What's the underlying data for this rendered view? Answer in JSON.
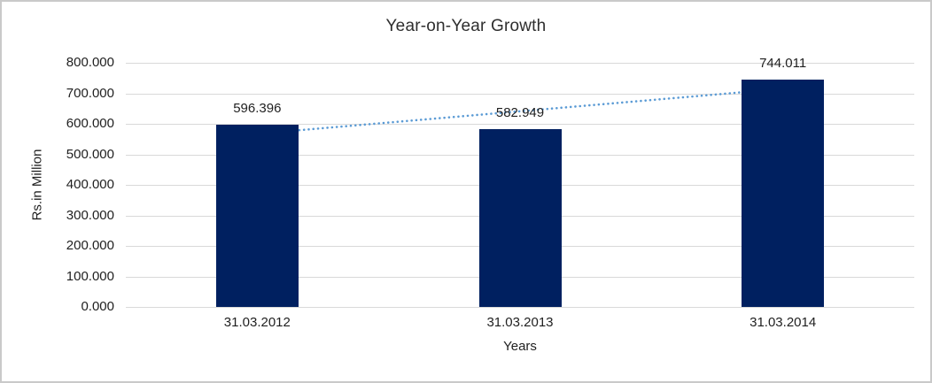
{
  "window": {
    "background_color": "#ffffff",
    "border_color": "#c9c9c9"
  },
  "chart_data": {
    "type": "bar",
    "title": "Year-on-Year Growth",
    "categories": [
      "31.03.2012",
      "31.03.2013",
      "31.03.2014"
    ],
    "values": [
      596.396,
      582.949,
      744.011
    ],
    "value_labels": [
      "596.396",
      "582.949",
      "744.011"
    ],
    "xlabel": "Years",
    "ylabel": "Rs.in Million",
    "ylim": [
      0,
      800
    ],
    "ytick_step": 100,
    "ytick_labels": [
      "800.000",
      "700.000",
      "600.000",
      "500.000",
      "400.000",
      "300.000",
      "200.000",
      "100.000",
      "0.000"
    ],
    "grid": true,
    "legend": "none",
    "bar_color": "#002060",
    "gridline_color": "#d9d9d9",
    "label_color": "#1f1f1f",
    "trendline": {
      "type": "linear",
      "style": "dotted",
      "color": "#5b9bd5"
    }
  }
}
